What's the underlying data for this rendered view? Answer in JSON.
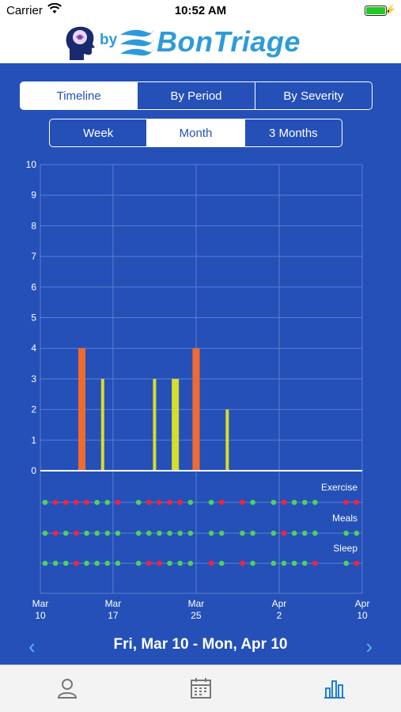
{
  "status": {
    "carrier": "Carrier",
    "time": "10:52 AM"
  },
  "header": {
    "by": "by",
    "brand": "BonTriage"
  },
  "view_tabs": [
    {
      "label": "Timeline",
      "active": true
    },
    {
      "label": "By Period",
      "active": false
    },
    {
      "label": "By Severity",
      "active": false
    }
  ],
  "range_tabs": [
    {
      "label": "Week",
      "active": false
    },
    {
      "label": "Month",
      "active": true
    },
    {
      "label": "3 Months",
      "active": false
    }
  ],
  "chart_data": {
    "type": "bar",
    "ylim": [
      0,
      10
    ],
    "yticks": [
      "0",
      "1",
      "2",
      "3",
      "4",
      "5",
      "6",
      "7",
      "8",
      "9",
      "10"
    ],
    "x_domain": [
      "2017-03-10",
      "2017-04-10"
    ],
    "xticks": [
      {
        "line1": "Mar",
        "line2": "10",
        "date": "2017-03-10"
      },
      {
        "line1": "Mar",
        "line2": "17",
        "date": "2017-03-17"
      },
      {
        "line1": "Mar",
        "line2": "25",
        "date": "2017-03-25"
      },
      {
        "line1": "Apr",
        "line2": "2",
        "date": "2017-04-02"
      },
      {
        "line1": "Apr",
        "line2": "10",
        "date": "2017-04-10"
      }
    ],
    "bars": [
      {
        "date": "2017-03-14",
        "value": 4,
        "color": "#f26a2e",
        "wide": true
      },
      {
        "date": "2017-03-16",
        "value": 3,
        "color": "#d7dd2a",
        "wide": false
      },
      {
        "date": "2017-03-21",
        "value": 3,
        "color": "#d7dd2a",
        "wide": false
      },
      {
        "date": "2017-03-23",
        "value": 3,
        "color": "#d7dd2a",
        "wide": true
      },
      {
        "date": "2017-03-25",
        "value": 4,
        "color": "#f26a2e",
        "wide": true
      },
      {
        "date": "2017-03-28",
        "value": 2,
        "color": "#d7dd2a",
        "wide": false
      }
    ],
    "tracks": [
      {
        "label": "Exercise",
        "dots": [
          "g",
          "r",
          "r",
          "r",
          "r",
          "g",
          "g",
          "r",
          "",
          "g",
          "r",
          "r",
          "r",
          "r",
          "g",
          "",
          "g",
          "r",
          "",
          "r",
          "g",
          "",
          "g",
          "r",
          "g",
          "g",
          "g",
          "",
          "",
          "r",
          "r"
        ]
      },
      {
        "label": "Meals",
        "dots": [
          "g",
          "r",
          "g",
          "r",
          "g",
          "g",
          "g",
          "g",
          "",
          "g",
          "g",
          "g",
          "g",
          "g",
          "g",
          "",
          "g",
          "g",
          "",
          "g",
          "g",
          "",
          "g",
          "r",
          "g",
          "g",
          "g",
          "",
          "",
          "g",
          "g"
        ]
      },
      {
        "label": "Sleep",
        "dots": [
          "g",
          "g",
          "g",
          "r",
          "g",
          "g",
          "g",
          "g",
          "",
          "g",
          "r",
          "r",
          "g",
          "g",
          "g",
          "",
          "r",
          "g",
          "",
          "r",
          "g",
          "",
          "g",
          "g",
          "g",
          "g",
          "r",
          "",
          "",
          "g",
          "r"
        ]
      }
    ],
    "colors": {
      "good": "#4fd25a",
      "bad": "#ff1f3c",
      "grid": "#5a7fd0",
      "axis": "#ffffff"
    }
  },
  "footer": {
    "date_range": "Fri, Mar 10 - Mon, Apr 10",
    "prev": "‹",
    "next": "›"
  },
  "tabbar": [
    {
      "icon": "person-icon",
      "active": false
    },
    {
      "icon": "calendar-icon",
      "active": false
    },
    {
      "icon": "bar-chart-icon",
      "active": true
    }
  ]
}
